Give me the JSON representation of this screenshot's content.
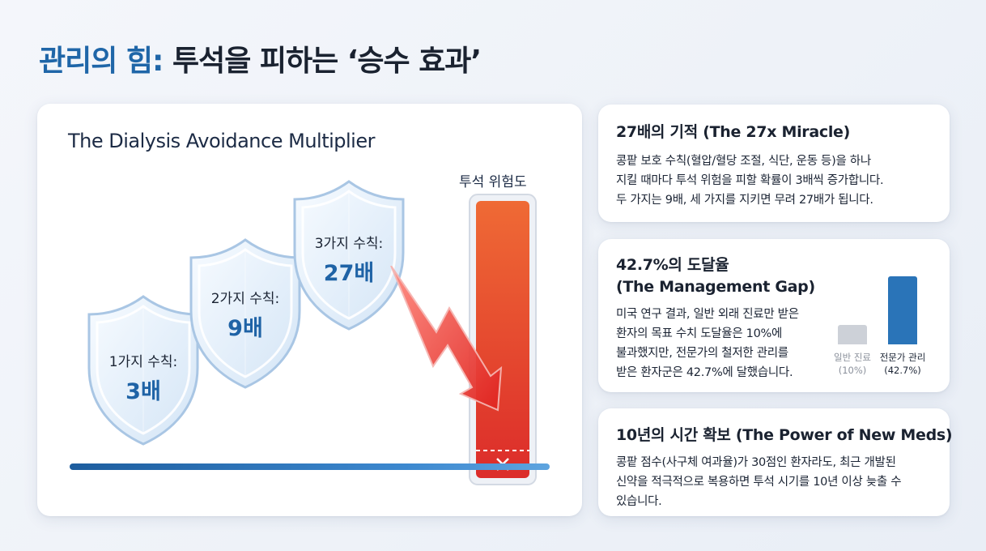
{
  "title": {
    "accent": "관리의 힘:",
    "rest": " 투석을 피하는 ‘승수 효과’"
  },
  "infographic": {
    "heading": "The Dialysis Avoidance Multiplier",
    "risk_label": "투석 위험도",
    "risk_icon": "x-icon",
    "shields": [
      {
        "label": "1가지 수칙:",
        "value": "3배"
      },
      {
        "label": "2가지 수칙:",
        "value": "9배"
      },
      {
        "label": "3가지 수칙:",
        "value": "27배"
      }
    ],
    "colors": {
      "shield_value": "#1f63a6",
      "risk_bar": "#e8472e",
      "bolt": "#ea3b3b",
      "baseline": "#2a72bb"
    }
  },
  "cards": [
    {
      "title": "27배의 기적 (The 27x Miracle)",
      "body": [
        "콩팥 보호 수칙(혈압/혈당 조절, 식단, 운동 등)을 하나",
        "지킬 때마다 투석 위험을 피할 확률이 3배씩 증가합니다.",
        "두 가지는 9배, 세 가지를 지키면 무려 27배가 됩니다."
      ]
    },
    {
      "title_lines": [
        "42.7%의 도달율",
        "(The Management Gap)"
      ],
      "body": [
        "미국 연구 결과, 일반 외래 진료만 받은",
        "환자의 목표 수치 도달율은 10%에",
        "불과했지만, 전문가의 철저한 관리를",
        "받은 환자군은 42.7%에 달했습니다."
      ],
      "mini_chart": {
        "type": "bar",
        "categories": [
          "일반 진료",
          "전문가 관리"
        ],
        "category_values_text": [
          "(10%)",
          "(42.7%)"
        ],
        "values": [
          10,
          42.7
        ],
        "colors": [
          "#cdd1d8",
          "#2a74b8"
        ]
      }
    },
    {
      "title": "10년의 시간 확보 (The Power of New Meds)",
      "body": [
        "콩팥 점수(사구체 여과율)가 30점인 환자라도, 최근 개발된",
        "신약을 적극적으로 복용하면 투석 시기를 10년 이상 늦출 수",
        "있습니다."
      ]
    }
  ]
}
